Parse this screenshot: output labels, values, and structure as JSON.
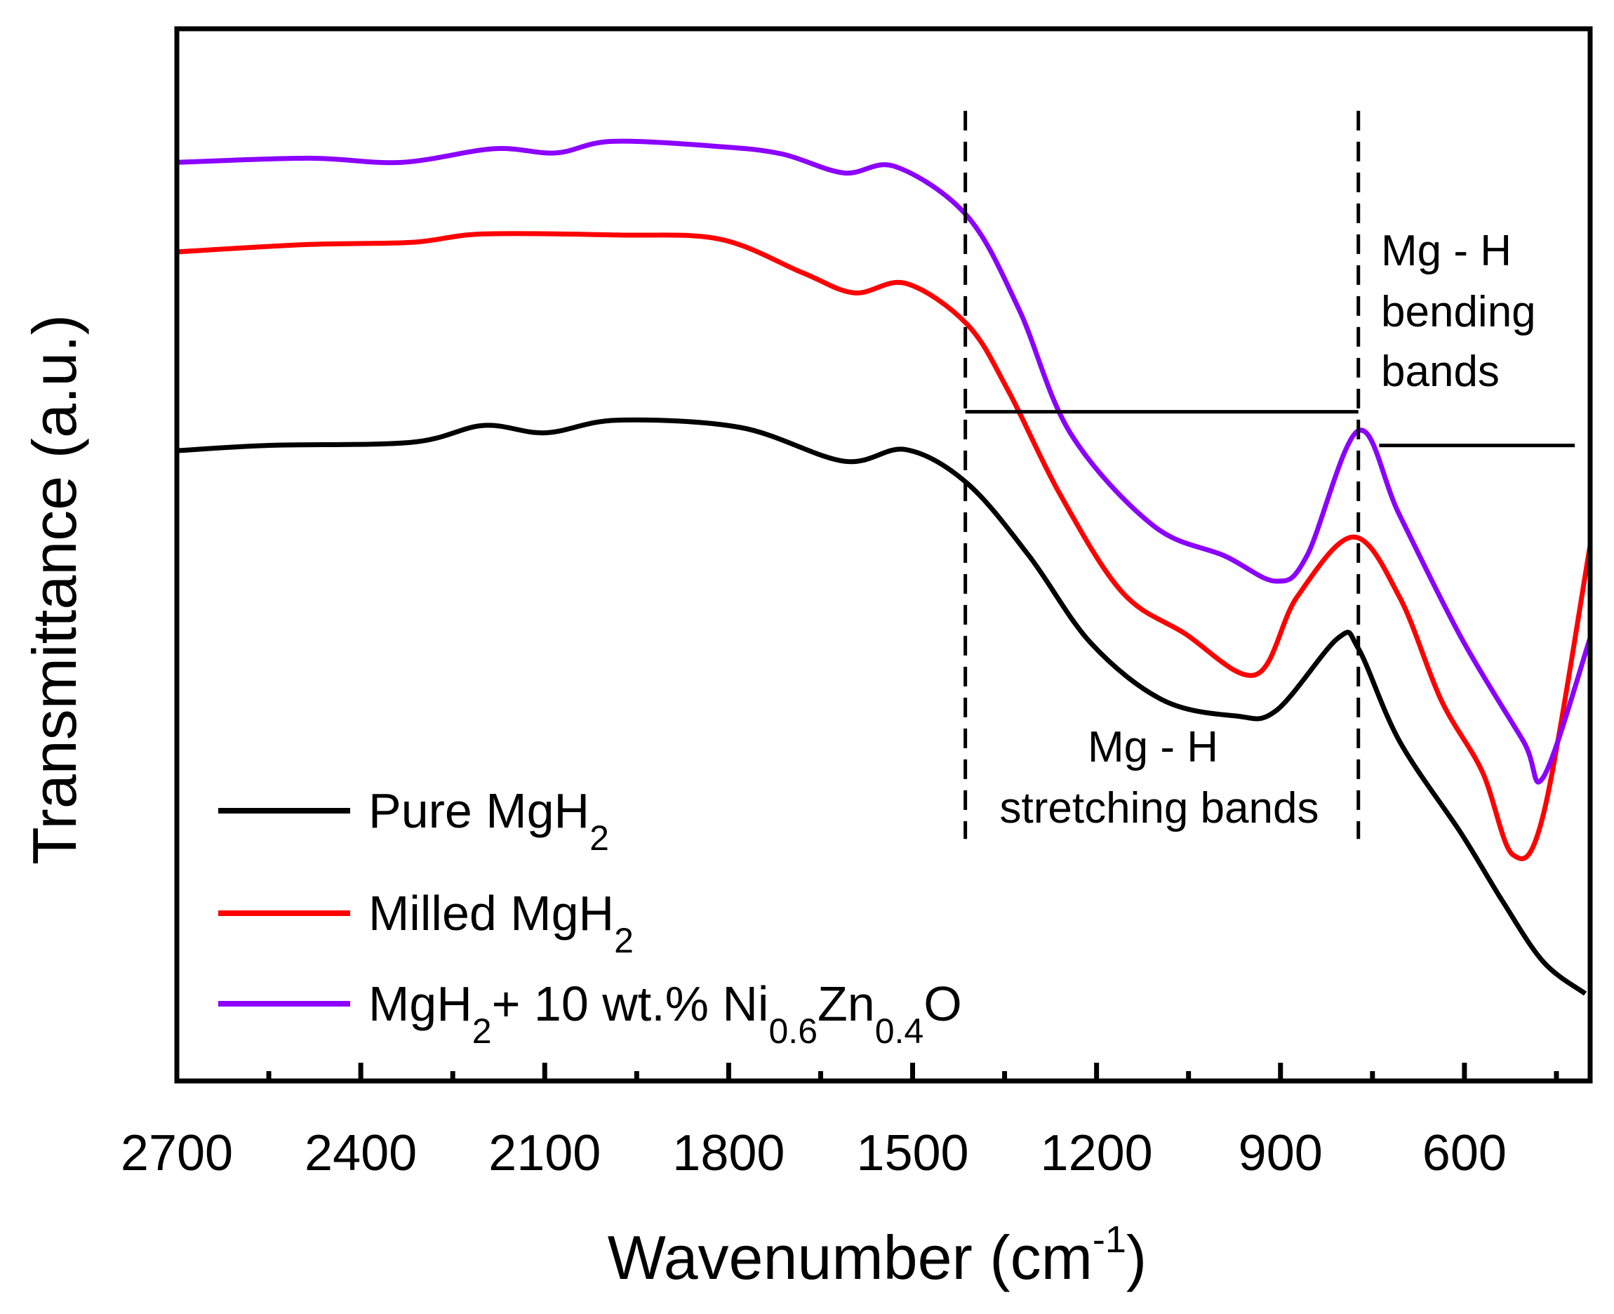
{
  "chart_data": {
    "type": "line",
    "xlabel": {
      "main": "Wavenumber (cm",
      "sup": "-1",
      "end": ")"
    },
    "ylabel": "Transmittance (a.u.)",
    "xlim": [
      2700,
      395
    ],
    "ylim": [
      0,
      100
    ],
    "x_ticks": [
      2700,
      2400,
      2100,
      1800,
      1500,
      1200,
      900,
      600
    ],
    "x_minor_ticks": [
      2550,
      2250,
      1950,
      1650,
      1350,
      1050,
      750,
      450
    ],
    "grid": false,
    "legend_position": "bottom-left",
    "series": [
      {
        "name": "Pure MgH2",
        "color": "#000000",
        "label_parts": [
          {
            "t": "Pure MgH"
          },
          {
            "t": "2",
            "sub": true
          }
        ],
        "x": [
          2700,
          2552,
          2317,
          2200,
          2099,
          1981,
          1780,
          1612,
          1511,
          1411,
          1310,
          1209,
          1092,
          974,
          907,
          806,
          773,
          706,
          605,
          538,
          471,
          403
        ],
        "y": [
          59.9,
          60.4,
          60.7,
          62.3,
          61.6,
          62.8,
          62.1,
          58.9,
          60.0,
          56.8,
          49.9,
          41.6,
          36.2,
          34.7,
          35.2,
          42.1,
          41.1,
          32.3,
          23.5,
          17.1,
          11.3,
          8.3
        ]
      },
      {
        "name": "Milled MgH2",
        "color": "#ff0000",
        "label_parts": [
          {
            "t": "Milled MgH"
          },
          {
            "t": "2",
            "sub": true
          }
        ],
        "x": [
          2700,
          2485,
          2317,
          2200,
          1981,
          1814,
          1679,
          1595,
          1511,
          1411,
          1344,
          1260,
          1159,
          1058,
          941,
          873,
          781,
          706,
          638,
          571,
          521,
          471,
          395
        ],
        "y": [
          78.8,
          79.5,
          79.7,
          80.5,
          80.4,
          80.0,
          76.8,
          74.9,
          75.8,
          71.9,
          65.6,
          55.8,
          46.5,
          42.6,
          38.6,
          46.0,
          51.7,
          46.0,
          36.2,
          29.4,
          21.5,
          25.4,
          50.9
        ]
      },
      {
        "name": "MgH2+ 10 wt.% Ni0.6Zn0.4O",
        "color": "#8b00ff",
        "label_parts": [
          {
            "t": "MgH"
          },
          {
            "t": "2",
            "sub": true
          },
          {
            "t": "+ 10 wt.% Ni"
          },
          {
            "t": "0.6",
            "sub": true
          },
          {
            "t": "Zn"
          },
          {
            "t": "0.4",
            "sub": true
          },
          {
            "t": "O"
          }
        ],
        "x": [
          2700,
          2485,
          2334,
          2183,
          2082,
          1990,
          1814,
          1713,
          1612,
          1528,
          1411,
          1327,
          1243,
          1108,
          991,
          907,
          857,
          773,
          706,
          605,
          504,
          471,
          395
        ],
        "y": [
          87.3,
          87.7,
          87.3,
          88.6,
          88.2,
          89.3,
          88.8,
          88.1,
          86.3,
          86.9,
          82.2,
          73.4,
          61.6,
          52.8,
          49.9,
          47.5,
          49.9,
          61.8,
          53.8,
          42.1,
          32.3,
          28.9,
          42.1
        ]
      }
    ],
    "annotations": {
      "dashed_lines_x": [
        1414,
        773
      ],
      "dashed_range_y": [
        23.0,
        92.2
      ],
      "stretching_bracket": {
        "x": [
          1414,
          773
        ],
        "y": 63.6
      },
      "bending_bracket": {
        "x": [
          739,
          420
        ],
        "y": 60.4
      },
      "stretching_label": [
        "Mg - H",
        "stretching bands"
      ],
      "bending_label": [
        "Mg - H",
        "bending",
        "bands"
      ]
    }
  }
}
